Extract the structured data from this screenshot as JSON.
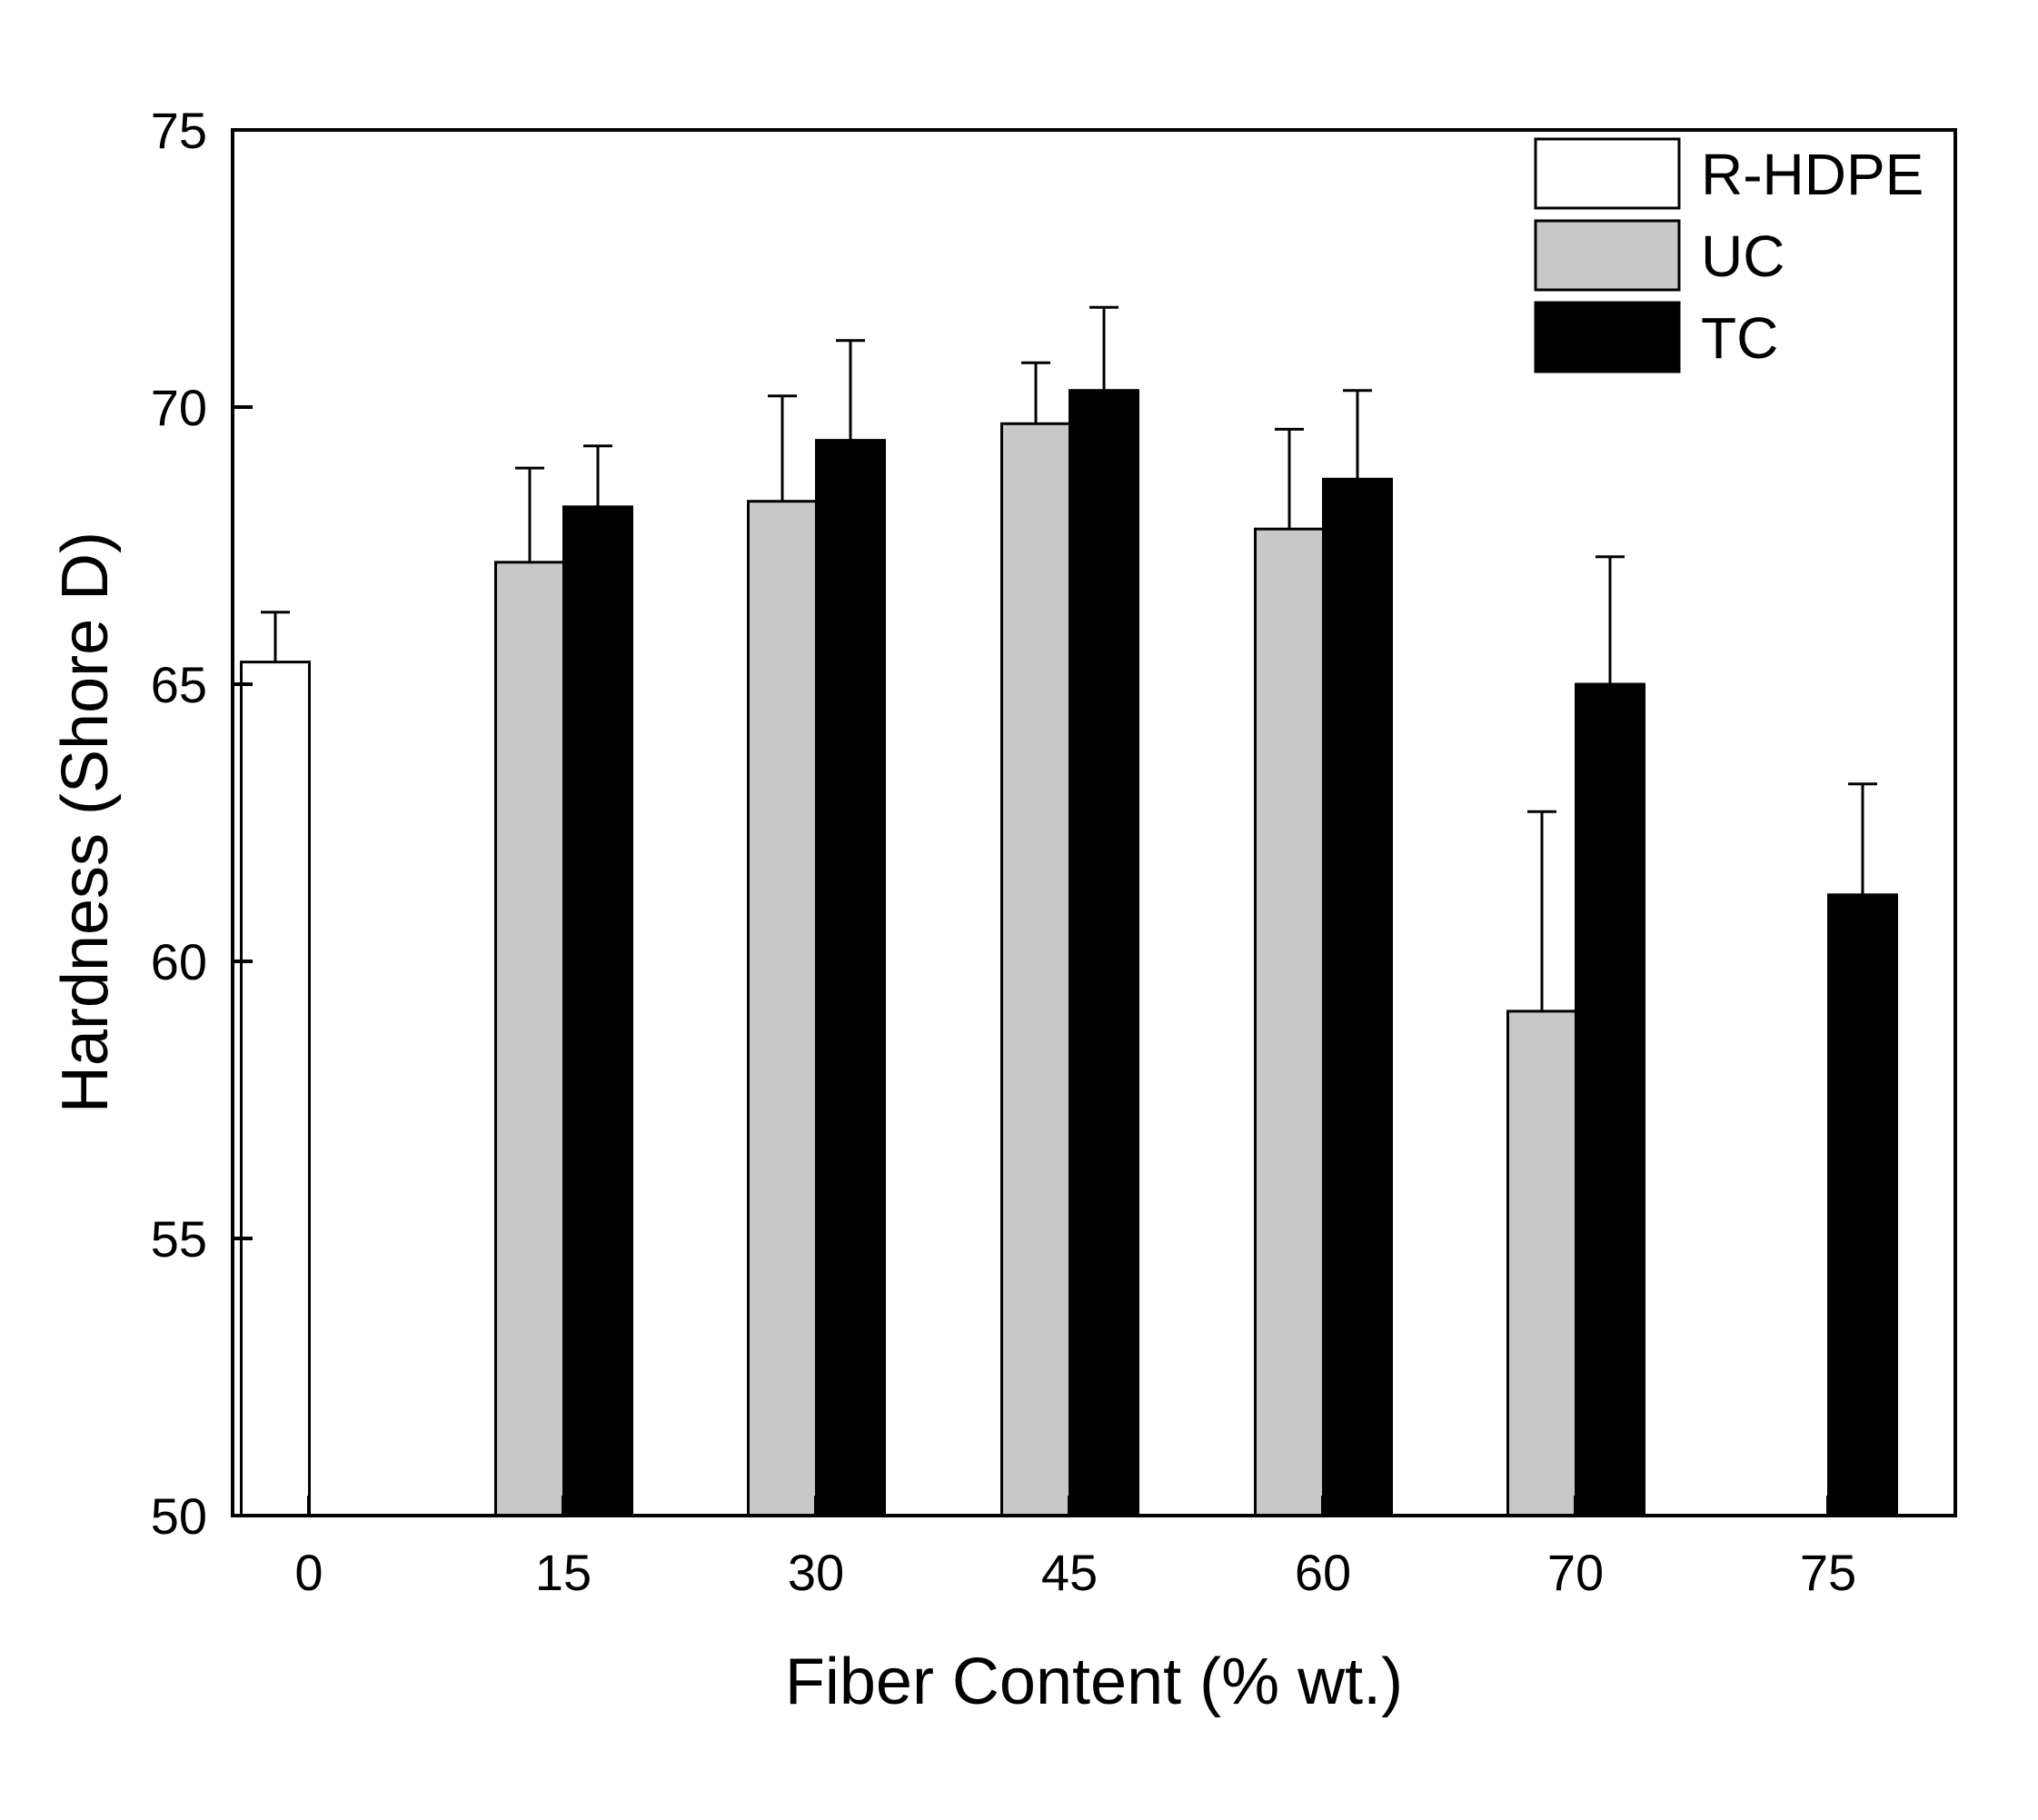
{
  "chart_data": {
    "type": "bar",
    "xlabel": "Fiber Content (% wt.)",
    "ylabel": "Hardness (Shore D)",
    "ylim": [
      50,
      75
    ],
    "yticks": [
      50,
      55,
      60,
      65,
      70,
      75
    ],
    "categories": [
      "0",
      "15",
      "30",
      "45",
      "60",
      "70",
      "75"
    ],
    "legend_position": "top-right",
    "grid": false,
    "series": [
      {
        "name": "R-HDPE",
        "color": "#ffffff",
        "values": [
          65.4,
          null,
          null,
          null,
          null,
          null,
          null
        ],
        "errors": [
          0.9,
          null,
          null,
          null,
          null,
          null,
          null
        ]
      },
      {
        "name": "UC",
        "color": "#c8c8c8",
        "values": [
          null,
          67.2,
          68.3,
          69.7,
          67.8,
          59.1,
          null
        ],
        "errors": [
          null,
          1.7,
          1.9,
          1.1,
          1.8,
          3.6,
          null
        ]
      },
      {
        "name": "TC",
        "color": "#000000",
        "values": [
          null,
          68.2,
          69.4,
          70.3,
          68.7,
          65.0,
          61.2
        ],
        "errors": [
          null,
          1.1,
          1.8,
          1.5,
          1.6,
          2.3,
          2.0
        ]
      }
    ]
  }
}
